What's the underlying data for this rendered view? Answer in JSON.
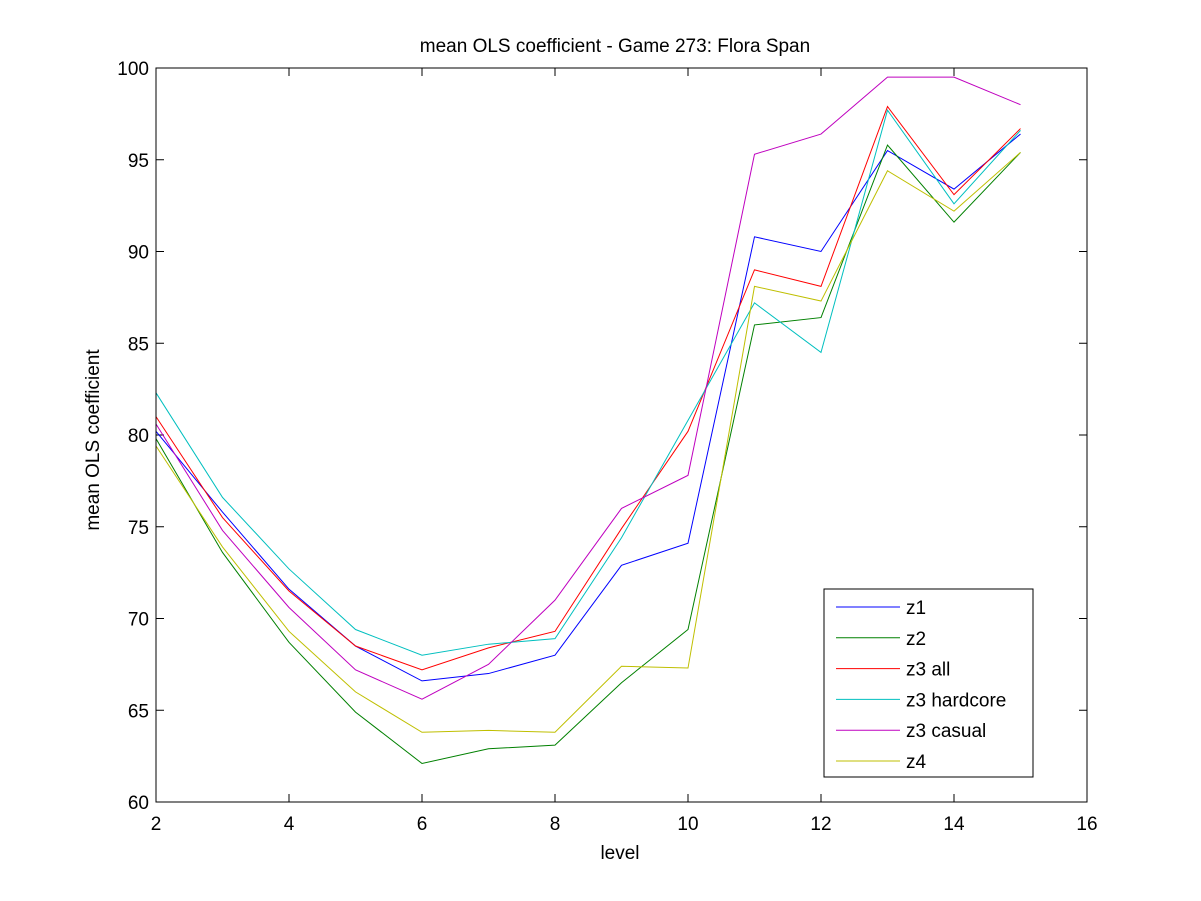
{
  "chart_data": {
    "type": "line",
    "title": "mean OLS coefficient - Game 273: Flora Span",
    "xlabel": "level",
    "ylabel": "mean OLS coefficient",
    "xlim": [
      2,
      16
    ],
    "ylim": [
      60,
      100
    ],
    "xticks": [
      2,
      4,
      6,
      8,
      10,
      12,
      14,
      16
    ],
    "yticks": [
      60,
      65,
      70,
      75,
      80,
      85,
      90,
      95,
      100
    ],
    "grid": false,
    "legend_position": "bottom-right",
    "x": [
      2,
      3,
      4,
      5,
      6,
      7,
      8,
      9,
      10,
      11,
      12,
      13,
      14,
      15
    ],
    "series": [
      {
        "name": "z1",
        "color": "#0000ff",
        "values": [
          80.2,
          75.8,
          71.6,
          68.5,
          66.6,
          67.0,
          68.0,
          72.9,
          74.1,
          90.8,
          90.0,
          95.5,
          93.4,
          96.4
        ]
      },
      {
        "name": "z2",
        "color": "#008000",
        "values": [
          79.8,
          73.6,
          68.7,
          64.9,
          62.1,
          62.9,
          63.1,
          66.5,
          69.4,
          86.0,
          86.4,
          95.8,
          91.6,
          95.4
        ]
      },
      {
        "name": "z3 all",
        "color": "#ff0000",
        "values": [
          81.0,
          75.5,
          71.5,
          68.5,
          67.2,
          68.4,
          69.3,
          74.9,
          80.2,
          89.0,
          88.1,
          97.9,
          93.1,
          96.7
        ]
      },
      {
        "name": "z3 hardcore",
        "color": "#00bfbf",
        "values": [
          82.3,
          76.6,
          72.7,
          69.4,
          68.0,
          68.6,
          68.9,
          74.4,
          80.8,
          87.2,
          84.5,
          97.7,
          92.6,
          96.6
        ]
      },
      {
        "name": "z3 casual",
        "color": "#bf00bf",
        "values": [
          80.6,
          74.8,
          70.6,
          67.2,
          65.6,
          67.5,
          71.0,
          76.0,
          77.8,
          95.3,
          96.4,
          99.5,
          99.5,
          98.0
        ]
      },
      {
        "name": "z4",
        "color": "#bfbf00",
        "values": [
          79.4,
          73.9,
          69.3,
          66.0,
          63.8,
          63.9,
          63.8,
          67.4,
          67.3,
          88.1,
          87.3,
          94.4,
          92.2,
          95.4
        ]
      }
    ]
  }
}
